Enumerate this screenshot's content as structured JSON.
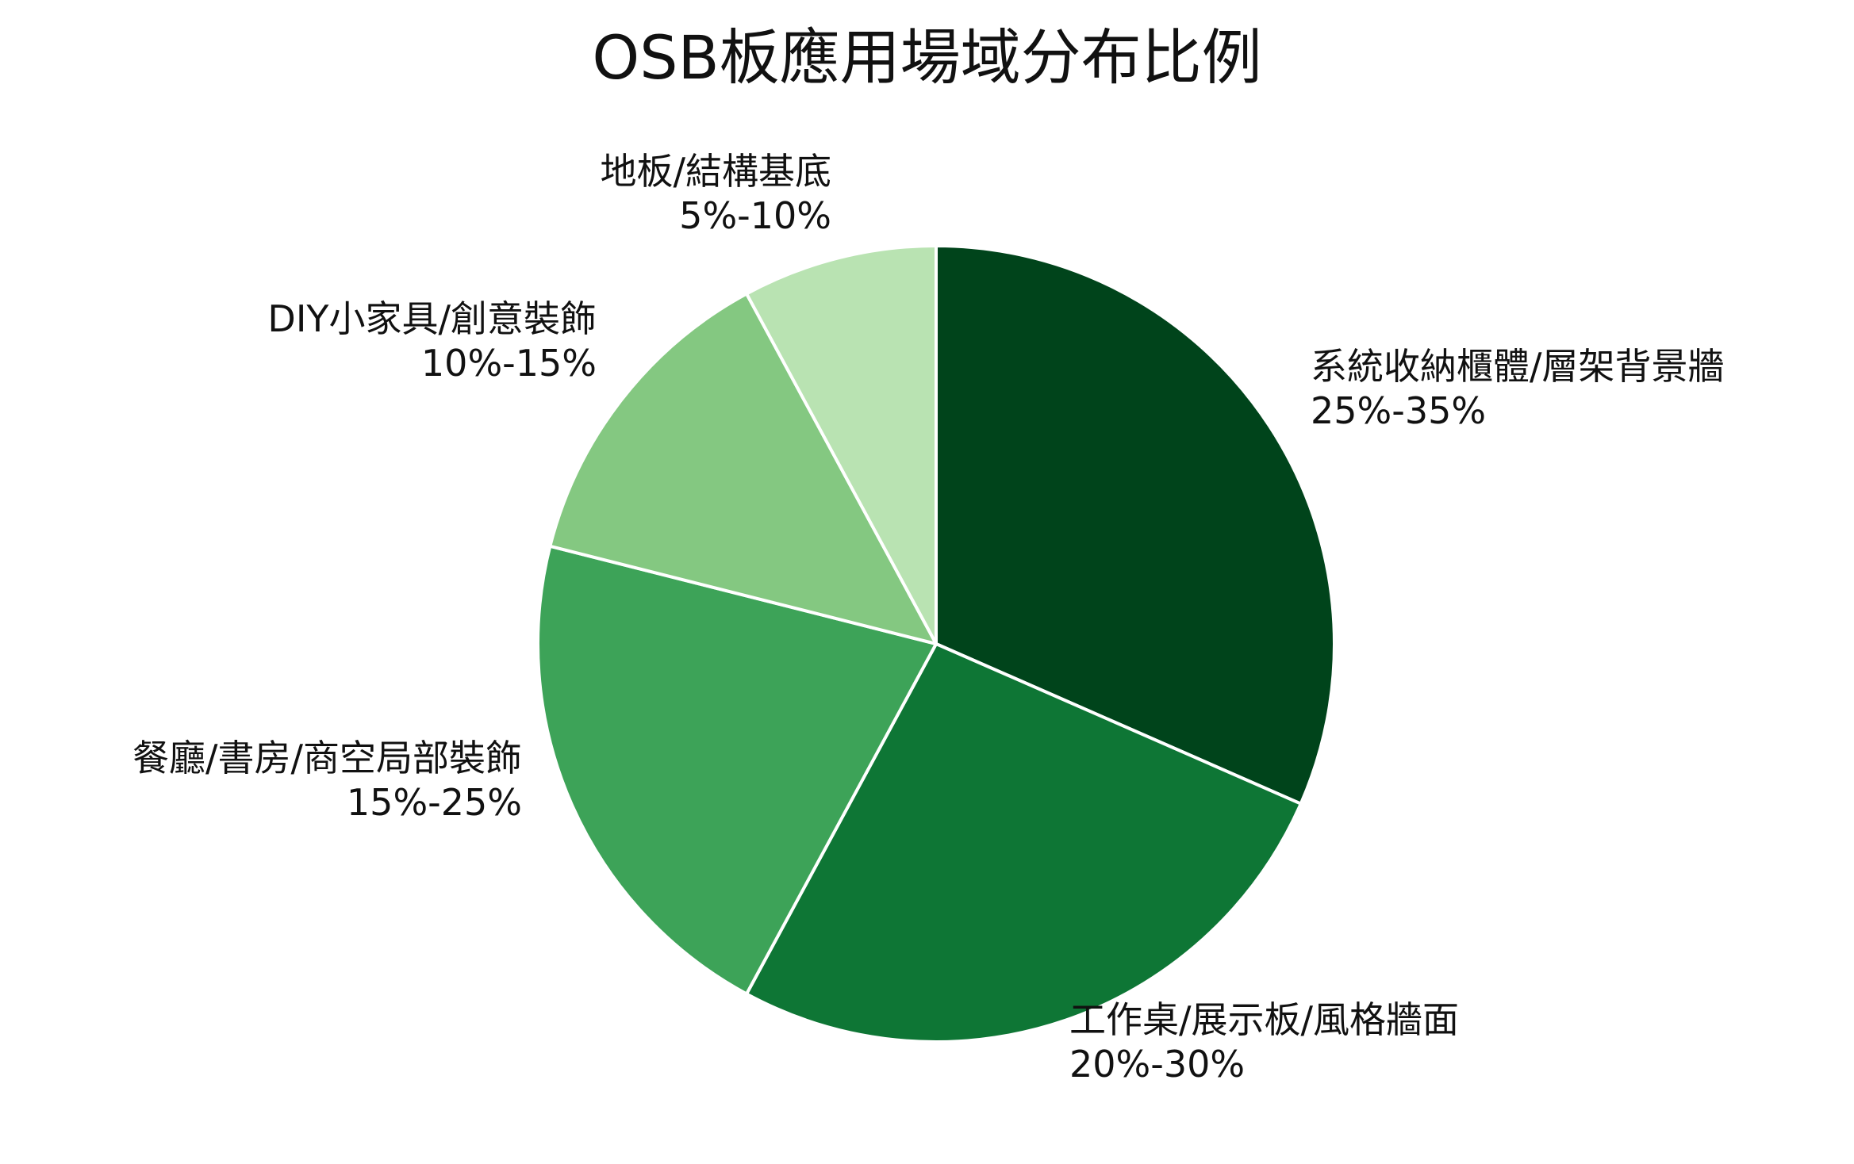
{
  "chart_data": {
    "type": "pie",
    "title": "OSB板應用場域分布比例",
    "slices": [
      {
        "category": "系統收納櫃體/層架背景牆",
        "range_label": "25%-35%",
        "value": 30,
        "color": "#00441b"
      },
      {
        "category": "工作桌/展示板/風格牆面",
        "range_label": "20%-30%",
        "value": 25,
        "color": "#0e7635"
      },
      {
        "category": "餐廳/書房/商空局部裝飾",
        "range_label": "15%-25%",
        "value": 20,
        "color": "#3da358"
      },
      {
        "category": "DIY小家具/創意裝飾",
        "range_label": "10%-15%",
        "value": 12.5,
        "color": "#84c881"
      },
      {
        "category": "地板/結構基底",
        "range_label": "5%-10%",
        "value": 7.5,
        "color": "#b9e3b2"
      }
    ],
    "start_angle_deg": 0,
    "direction": "clockwise",
    "legend": "none"
  }
}
